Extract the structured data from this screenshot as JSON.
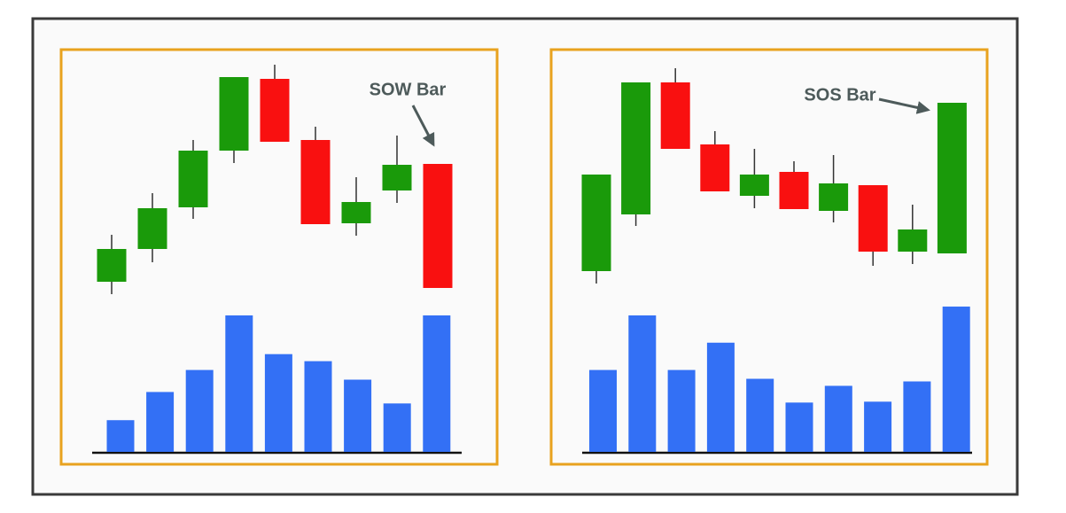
{
  "chart_data": [
    {
      "type": "candlestick",
      "annotation": "SOW Bar",
      "open": [
        32,
        69,
        116,
        180,
        261,
        192,
        98,
        135,
        165
      ],
      "high": [
        85,
        132,
        192,
        263,
        277,
        207,
        150,
        197,
        165
      ],
      "low": [
        18,
        54,
        103,
        166,
        190,
        97,
        84,
        121,
        25
      ],
      "close": [
        69,
        115,
        180,
        263,
        190,
        97,
        122,
        164,
        25
      ],
      "volume": [
        36,
        68,
        93,
        155,
        111,
        103,
        82,
        55,
        155
      ],
      "ylim": [
        0,
        290
      ],
      "volume_ylim": [
        0,
        160
      ],
      "up_color": "#1a9a0a",
      "down_color": "#f91010",
      "volume_color": "#3370f5"
    },
    {
      "type": "candlestick",
      "annotation": "SOS Bar",
      "open": [
        44,
        108,
        257,
        187,
        129,
        156,
        112,
        141,
        66,
        64
      ],
      "high": [
        153,
        257,
        273,
        202,
        182,
        168,
        175,
        141,
        119,
        234
      ],
      "low": [
        30,
        95,
        182,
        134,
        115,
        114,
        99,
        50,
        52,
        64
      ],
      "close": [
        153,
        257,
        182,
        134,
        153,
        114,
        143,
        66,
        91,
        234
      ],
      "volume": [
        93,
        155,
        93,
        124,
        83,
        56,
        75,
        57,
        80,
        165
      ],
      "ylim": [
        0,
        290
      ],
      "volume_ylim": [
        0,
        160
      ],
      "up_color": "#1a9a0a",
      "down_color": "#f91010",
      "volume_color": "#3370f5"
    }
  ]
}
